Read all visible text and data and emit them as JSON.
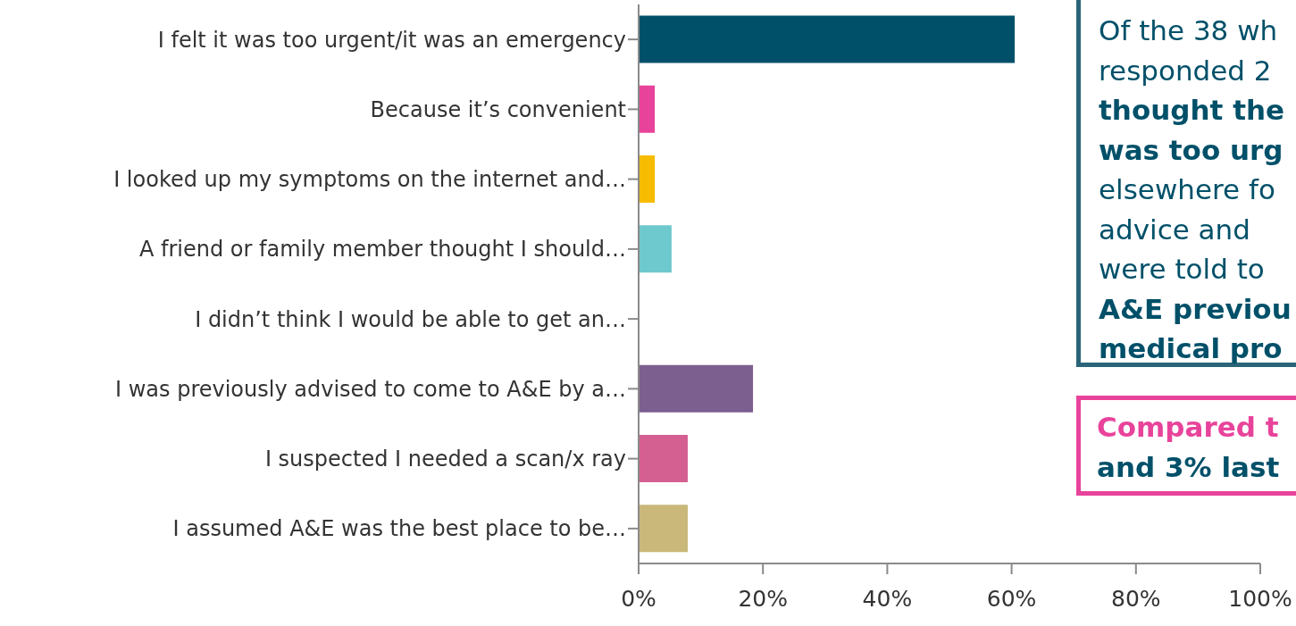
{
  "chart_data": {
    "type": "bar",
    "orientation": "horizontal",
    "categories": [
      "I felt it was too urgent/it was an emergency",
      "Because it’s convenient",
      "I looked up my symptoms on the internet and…",
      "A friend or family member thought I should…",
      "I didn’t think I would be able to get an…",
      "I was previously advised to come to A&E by a…",
      "I suspected I needed a scan/x ray",
      "I assumed A&E was the best place to be…"
    ],
    "values": [
      60.5,
      2.6,
      2.6,
      5.3,
      0,
      18.4,
      7.9,
      7.9
    ],
    "colors": [
      "#005069",
      "#e8439b",
      "#f7bb00",
      "#6dc9cd",
      "#6dc9cd",
      "#7c5e8f",
      "#d45f91",
      "#c9b87a"
    ],
    "xlim": [
      0,
      100
    ],
    "xticks": [
      {
        "value": 0,
        "label": "0%"
      },
      {
        "value": 20,
        "label": "20%"
      },
      {
        "value": 40,
        "label": "40%"
      },
      {
        "value": 60,
        "label": "60%"
      },
      {
        "value": 80,
        "label": "80%"
      },
      {
        "value": 100,
        "label": "100%"
      }
    ],
    "grid": false,
    "legend": false,
    "annotations": [
      "Of the 38 wh",
      "responded 2",
      "thought the",
      "was too urg",
      "elsewhere fo",
      "advice and",
      "were told to",
      "A&E previou",
      "medical pro",
      "Compared t",
      "and 3% last"
    ]
  }
}
